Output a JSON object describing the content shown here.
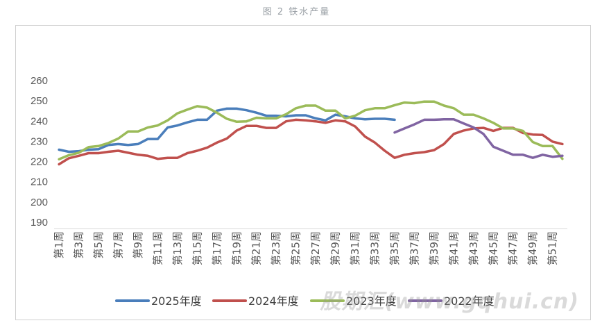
{
  "figure_title": "图 2 铁水产量",
  "watermark": "股期汇(www.gqhui.cn)",
  "chart_data": {
    "type": "line",
    "title": "",
    "xlabel": "",
    "ylabel": "",
    "ylim": [
      190,
      260
    ],
    "yticks": [
      190,
      200,
      210,
      220,
      230,
      240,
      250,
      260
    ],
    "grid": false,
    "legend_position": "bottom",
    "x": [
      "第1周",
      "第2周",
      "第3周",
      "第4周",
      "第5周",
      "第6周",
      "第7周",
      "第8周",
      "第9周",
      "第10周",
      "第11周",
      "第12周",
      "第13周",
      "第14周",
      "第15周",
      "第16周",
      "第17周",
      "第18周",
      "第19周",
      "第20周",
      "第21周",
      "第22周",
      "第23周",
      "第24周",
      "第25周",
      "第26周",
      "第27周",
      "第28周",
      "第29周",
      "第30周",
      "第31周",
      "第32周",
      "第33周",
      "第34周",
      "第35周",
      "第36周",
      "第37周",
      "第38周",
      "第39周",
      "第40周",
      "第41周",
      "第42周",
      "第43周",
      "第44周",
      "第45周",
      "第46周",
      "第47周",
      "第48周",
      "第49周",
      "第50周",
      "第51周",
      "第52周"
    ],
    "tick_labels": [
      "第1周",
      "第3周",
      "第5周",
      "第7周",
      "第9周",
      "第11周",
      "第13周",
      "第15周",
      "第17周",
      "第19周",
      "第21周",
      "第23周",
      "第25周",
      "第27周",
      "第29周",
      "第31周",
      "第33周",
      "第35周",
      "第37周",
      "第39周",
      "第41周",
      "第43周",
      "第45周",
      "第47周",
      "第49周",
      "第51周"
    ],
    "series": [
      {
        "name": "2025年度",
        "color": "#4a7ebb",
        "values": [
          225.5,
          224.5,
          224.8,
          225.5,
          225.8,
          227.8,
          228.3,
          227.8,
          228.3,
          230.8,
          230.8,
          236.5,
          237.5,
          239,
          240.3,
          240.3,
          244.8,
          245.8,
          245.8,
          245,
          243.8,
          242.3,
          242.3,
          242,
          242.5,
          242.5,
          241,
          240,
          242.8,
          242,
          241,
          240.5,
          240.8,
          240.8,
          240.3,
          null,
          null,
          null,
          null,
          null,
          null,
          null,
          null,
          null,
          null,
          null,
          null,
          null,
          null,
          null,
          null,
          null
        ]
      },
      {
        "name": "2024年度",
        "color": "#c0504d",
        "values": [
          218.3,
          221.3,
          222.5,
          223.8,
          223.8,
          224.5,
          225,
          224,
          223,
          222.5,
          221,
          221.5,
          221.5,
          223.8,
          225,
          226.5,
          229,
          231,
          235,
          237.3,
          237.3,
          236.3,
          236.3,
          239.5,
          240.3,
          240,
          239.5,
          238.8,
          240,
          239.5,
          237,
          232,
          229,
          225,
          221.5,
          223,
          223.8,
          224.3,
          225.3,
          228.3,
          233.3,
          235,
          236,
          236.3,
          234.8,
          236.3,
          236.3,
          233.8,
          233,
          232.8,
          229.5,
          228.3
        ]
      },
      {
        "name": "2023年度",
        "color": "#9bbb59",
        "values": [
          220.8,
          222.8,
          224,
          226.8,
          227.3,
          228.8,
          231,
          234.5,
          234.5,
          236.5,
          237.5,
          240,
          243.5,
          245.3,
          247,
          246.3,
          243.8,
          240.8,
          239.3,
          239.5,
          241.3,
          241,
          241,
          243,
          246,
          247.3,
          247.3,
          244.8,
          244.8,
          241,
          242.3,
          245,
          246,
          246,
          247.5,
          248.8,
          248.5,
          249.3,
          249.3,
          247.3,
          246,
          242.8,
          242.8,
          241,
          238.8,
          236,
          236,
          234.8,
          229.3,
          227.3,
          227.3,
          221
        ]
      },
      {
        "name": "2022年度",
        "color": "#8064a2",
        "values": [
          null,
          null,
          null,
          null,
          null,
          null,
          null,
          null,
          null,
          null,
          null,
          null,
          null,
          null,
          null,
          null,
          null,
          null,
          null,
          null,
          null,
          null,
          null,
          null,
          null,
          null,
          null,
          null,
          null,
          null,
          null,
          null,
          null,
          null,
          234,
          236,
          238,
          240.3,
          240.3,
          240.5,
          240.5,
          238.5,
          236.5,
          233.3,
          227,
          225,
          223,
          223,
          221.5,
          223,
          222,
          222.5
        ]
      }
    ]
  }
}
